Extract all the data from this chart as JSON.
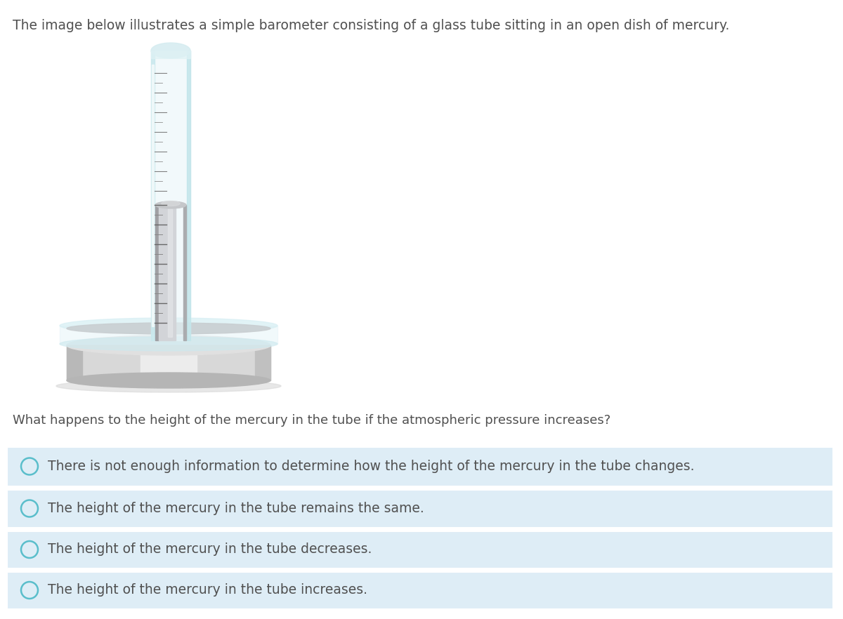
{
  "title_text": "The image below illustrates a simple barometer consisting of a glass tube sitting in an open dish of mercury.",
  "question_text": "What happens to the height of the mercury in the tube if the atmospheric pressure increases?",
  "options": [
    "There is not enough information to determine how the height of the mercury in the tube changes.",
    "The height of the mercury in the tube remains the same.",
    "The height of the mercury in the tube decreases.",
    "The height of the mercury in the tube increases."
  ],
  "option_bg_color": "#deedf6",
  "circle_stroke_color": "#5abecb",
  "text_color": "#505050",
  "background_color": "#ffffff",
  "title_fontsize": 13.5,
  "question_fontsize": 13.0,
  "option_fontsize": 13.5
}
